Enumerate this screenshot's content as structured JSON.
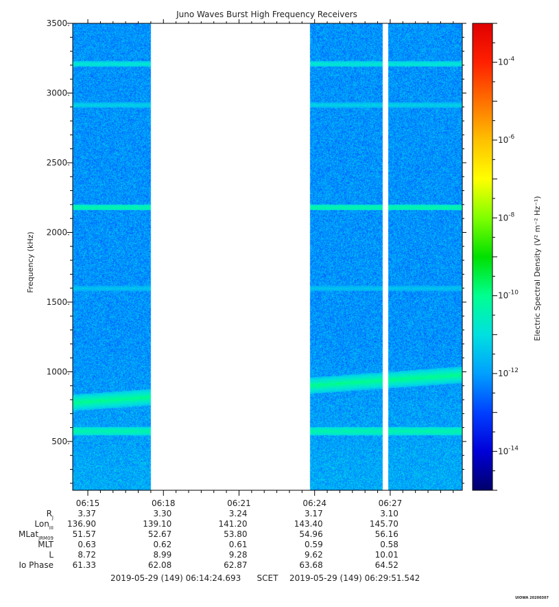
{
  "chart_data": {
    "type": "heatmap",
    "title": "Juno Waves Burst High Frequency Receivers",
    "ylabel": "Frequency (kHz)",
    "ylim": [
      150,
      3500
    ],
    "y_ticks": [
      "500.",
      "1000.",
      "1500.",
      "2000.",
      "2500.",
      "3000.",
      "3500."
    ],
    "x_ticks": [
      "06:15",
      "06:18",
      "06:21",
      "06:24",
      "06:27"
    ],
    "x_minutes": [
      15,
      18,
      21,
      24,
      27
    ],
    "xlim_minutes": [
      14.4,
      29.86
    ],
    "data_segments_minutes": [
      [
        14.4,
        17.5
      ],
      [
        23.8,
        26.7
      ],
      [
        26.9,
        29.86
      ]
    ],
    "colorbar": {
      "label": "Electric Spectral Density (V² m⁻² Hz⁻¹)",
      "log_min": -15,
      "log_max": -3,
      "ticks": [
        {
          "base": "10",
          "exp": "-4",
          "value": -4
        },
        {
          "base": "10",
          "exp": "-6",
          "value": -6
        },
        {
          "base": "10",
          "exp": "-8",
          "value": -8
        },
        {
          "base": "10",
          "exp": "-10",
          "value": -10
        },
        {
          "base": "10",
          "exp": "-12",
          "value": -12
        },
        {
          "base": "10",
          "exp": "-14",
          "value": -14
        }
      ],
      "colors": [
        "#00006a",
        "#0000d8",
        "#0040ff",
        "#00a0ff",
        "#00e0e0",
        "#00ff90",
        "#00e000",
        "#80ff00",
        "#ffff00",
        "#ffc000",
        "#ff7000",
        "#ff2000",
        "#e00000"
      ]
    },
    "emission_bands_khz": [
      {
        "freq": 575,
        "log_level": -10.3,
        "width": 6,
        "slope_khz_per_min": 0
      },
      {
        "freq": 780,
        "log_level": -10.0,
        "width": 12,
        "slope_khz_per_min": 13
      },
      {
        "freq": 2180,
        "log_level": -10.3,
        "width": 4,
        "slope_khz_per_min": 0
      },
      {
        "freq": 2915,
        "log_level": -11.2,
        "width": 4,
        "slope_khz_per_min": 0
      },
      {
        "freq": 3210,
        "log_level": -10.8,
        "width": 4,
        "slope_khz_per_min": 0
      },
      {
        "freq": 1600,
        "log_level": -11.4,
        "width": 4,
        "slope_khz_per_min": 0
      }
    ]
  },
  "ephemeris": {
    "rows": [
      {
        "label": "R",
        "sub": "J",
        "values": [
          "3.37",
          "3.30",
          "3.24",
          "3.17",
          "3.10"
        ]
      },
      {
        "label": "Lon",
        "sub": "III",
        "values": [
          "136.90",
          "139.10",
          "141.20",
          "143.40",
          "145.70"
        ]
      },
      {
        "label": "MLat",
        "sub": "JRM09",
        "values": [
          "51.57",
          "52.67",
          "53.80",
          "54.96",
          "56.16"
        ]
      },
      {
        "label": "MLT",
        "sub": "",
        "values": [
          "0.63",
          "0.62",
          "0.61",
          "0.59",
          "0.58"
        ]
      },
      {
        "label": "L",
        "sub": "",
        "values": [
          "8.72",
          "8.99",
          "9.28",
          "9.62",
          "10.01"
        ]
      },
      {
        "label": "Io Phase",
        "sub": "",
        "values": [
          "61.33",
          "62.08",
          "62.87",
          "63.68",
          "64.52"
        ]
      }
    ]
  },
  "footer": {
    "start_time": "2019-05-29 (149) 06:14:24.693",
    "time_system": "SCET",
    "end_time": "2019-05-29 (149) 06:29:51.542",
    "stamp": "UIOWA 20200307"
  }
}
